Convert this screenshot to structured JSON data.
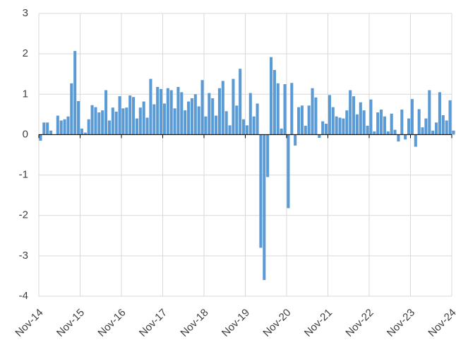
{
  "chart_data": {
    "type": "bar",
    "categories": [
      "Nov-14",
      null,
      null,
      null,
      null,
      null,
      null,
      null,
      null,
      null,
      null,
      null,
      "Nov-15",
      null,
      null,
      null,
      null,
      null,
      null,
      null,
      null,
      null,
      null,
      null,
      "Nov-16",
      null,
      null,
      null,
      null,
      null,
      null,
      null,
      null,
      null,
      null,
      null,
      "Nov-17",
      null,
      null,
      null,
      null,
      null,
      null,
      null,
      null,
      null,
      null,
      null,
      "Nov-18",
      null,
      null,
      null,
      null,
      null,
      null,
      null,
      null,
      null,
      null,
      null,
      "Nov-19",
      null,
      null,
      null,
      null,
      null,
      null,
      null,
      null,
      null,
      null,
      null,
      "Nov-20",
      null,
      null,
      null,
      null,
      null,
      null,
      null,
      null,
      null,
      null,
      null,
      "Nov-21",
      null,
      null,
      null,
      null,
      null,
      null,
      null,
      null,
      null,
      null,
      null,
      "Nov-22",
      null,
      null,
      null,
      null,
      null,
      null,
      null,
      null,
      null,
      null,
      null,
      "Nov-23",
      null,
      null,
      null,
      null,
      null,
      null,
      null,
      null,
      null,
      null,
      null,
      "Nov-24"
    ],
    "values": [
      -0.15,
      0.3,
      0.3,
      0.1,
      0,
      0.47,
      0.35,
      0.38,
      0.45,
      1.27,
      2.07,
      0.83,
      0.15,
      0.05,
      0.38,
      0.73,
      0.68,
      0.55,
      0.6,
      1.1,
      0.35,
      0.67,
      0.57,
      0.95,
      0.65,
      0.67,
      0.97,
      0.93,
      0.4,
      0.67,
      0.82,
      0.42,
      1.38,
      0.75,
      1.18,
      1.13,
      0.77,
      1.15,
      1.1,
      0.65,
      1.18,
      1.05,
      0.6,
      0.82,
      0.9,
      1.0,
      0.7,
      1.35,
      0.45,
      1.03,
      0.9,
      0.47,
      1.15,
      1.33,
      0.58,
      0.23,
      1.38,
      0.72,
      1.63,
      0.38,
      0.23,
      1.03,
      0.45,
      0.77,
      -2.8,
      -3.6,
      -1.05,
      1.92,
      1.6,
      1.27,
      0.15,
      1.25,
      -1.82,
      1.28,
      -0.27,
      0.68,
      0.72,
      0.22,
      0.72,
      1.15,
      0.92,
      -0.08,
      0.33,
      0.27,
      0.98,
      0.68,
      0.45,
      0.42,
      0.4,
      0.6,
      1.1,
      0.95,
      0.5,
      0.8,
      0.6,
      0.22,
      0.87,
      0.08,
      0.55,
      0.62,
      0.45,
      0.08,
      0.52,
      0.12,
      -0.17,
      0.62,
      -0.12,
      0.4,
      0.88,
      -0.3,
      0.63,
      0.18,
      0.4,
      1.1,
      0.1,
      0.3,
      1.05,
      0.48,
      0.35,
      0.85,
      0.1
    ],
    "color": "#5b9bd5",
    "ylim": [
      -4,
      3
    ],
    "yticks": [
      -4,
      -3,
      -2,
      -1,
      0,
      1,
      2,
      3
    ],
    "grid": true
  }
}
